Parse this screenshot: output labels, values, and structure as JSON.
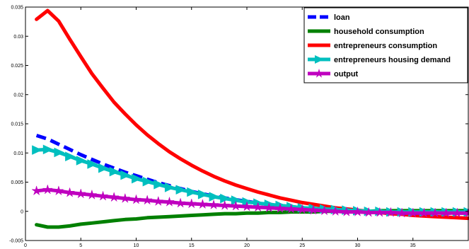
{
  "chart_data": {
    "type": "line",
    "title": "",
    "xlabel": "",
    "ylabel": "",
    "xlim": [
      0,
      40
    ],
    "ylim": [
      -0.005,
      0.035
    ],
    "xticks": [
      0,
      5,
      10,
      15,
      20,
      25,
      30,
      35
    ],
    "yticks": [
      -0.005,
      0,
      0.005,
      0.01,
      0.015,
      0.02,
      0.025,
      0.03,
      0.035
    ],
    "xtick_labels": [
      "0",
      "5",
      "10",
      "15",
      "20",
      "25",
      "30",
      "35"
    ],
    "ytick_labels": [
      "-0.005",
      "0",
      "0.005",
      "0.01",
      "0.015",
      "0.02",
      "0.025",
      "0.03",
      "0.035"
    ],
    "grid": false,
    "legend_position": "top-right",
    "x": [
      1,
      2,
      3,
      4,
      5,
      6,
      7,
      8,
      9,
      10,
      11,
      12,
      13,
      14,
      15,
      16,
      17,
      18,
      19,
      20,
      21,
      22,
      23,
      24,
      25,
      26,
      27,
      28,
      29,
      30,
      31,
      32,
      33,
      34,
      35,
      36,
      37,
      38,
      39,
      40
    ],
    "series": [
      {
        "name": "loan",
        "color": "#0000ff",
        "style": "dashed",
        "values": [
          0.013,
          0.0124,
          0.0115,
          0.0106,
          0.0097,
          0.0089,
          0.0081,
          0.0074,
          0.0067,
          0.0061,
          0.0055,
          0.0049,
          0.0044,
          0.0039,
          0.0034,
          0.003,
          0.0026,
          0.0023,
          0.002,
          0.0017,
          0.0014,
          0.0012,
          0.001,
          0.0008,
          0.0006,
          0.0004,
          0.0003,
          0.0002,
          0.0001,
          0.0,
          -0.0001,
          -0.0002,
          -0.0002,
          -0.0003,
          -0.0003,
          -0.0003,
          -0.0003,
          -0.0003,
          -0.0003,
          -0.0003
        ]
      },
      {
        "name": "household consumption",
        "color": "#008000",
        "style": "solid",
        "values": [
          -0.0023,
          -0.0027,
          -0.0027,
          -0.0025,
          -0.0022,
          -0.002,
          -0.0018,
          -0.0016,
          -0.0014,
          -0.0013,
          -0.0011,
          -0.001,
          -0.0009,
          -0.0008,
          -0.0007,
          -0.0006,
          -0.0005,
          -0.0004,
          -0.0004,
          -0.0003,
          -0.0003,
          -0.0002,
          -0.0002,
          -0.0001,
          -0.0001,
          -0.0001,
          0.0,
          0.0,
          0.0,
          0.0,
          0.0,
          0.0001,
          0.0001,
          0.0001,
          0.0001,
          0.0001,
          0.0001,
          0.0001,
          0.0001,
          0.0001
        ]
      },
      {
        "name": "entrepreneurs consumption",
        "color": "#ff0000",
        "style": "solid",
        "values": [
          0.0329,
          0.0344,
          0.0326,
          0.0295,
          0.0265,
          0.0236,
          0.0211,
          0.0187,
          0.0167,
          0.0148,
          0.0131,
          0.0116,
          0.0102,
          0.009,
          0.0079,
          0.0069,
          0.006,
          0.0052,
          0.0045,
          0.0039,
          0.0033,
          0.0028,
          0.0023,
          0.0019,
          0.0015,
          0.0012,
          0.0009,
          0.0006,
          0.0004,
          0.0002,
          0.0,
          -0.0002,
          -0.0004,
          -0.0005,
          -0.0007,
          -0.0008,
          -0.0009,
          -0.001,
          -0.0011,
          -0.0012
        ]
      },
      {
        "name": "entrepreneurs housing demand",
        "color": "#00bfbf",
        "style": "solid-arrow-markers",
        "values": [
          0.0105,
          0.0106,
          0.0101,
          0.0094,
          0.0087,
          0.0081,
          0.0074,
          0.0068,
          0.0062,
          0.0056,
          0.0051,
          0.0046,
          0.0041,
          0.0037,
          0.0033,
          0.0029,
          0.0025,
          0.0022,
          0.0019,
          0.0016,
          0.0014,
          0.0012,
          0.001,
          0.0008,
          0.0006,
          0.0005,
          0.0004,
          0.0003,
          0.0002,
          0.0001,
          0.0,
          0.0,
          -0.0001,
          -0.0001,
          -0.0001,
          -0.0001,
          -0.0001,
          -0.0001,
          -0.0001,
          -0.0001
        ]
      },
      {
        "name": "output",
        "color": "#bf00bf",
        "style": "solid-star-markers",
        "values": [
          0.0035,
          0.0037,
          0.0035,
          0.0032,
          0.003,
          0.0028,
          0.0026,
          0.0024,
          0.0022,
          0.002,
          0.0019,
          0.0017,
          0.0016,
          0.0014,
          0.0013,
          0.0012,
          0.0011,
          0.001,
          0.0009,
          0.0008,
          0.0007,
          0.0006,
          0.0005,
          0.0004,
          0.0003,
          0.0002,
          0.0001,
          0.0,
          -0.0001,
          -0.0001,
          -0.0002,
          -0.0002,
          -0.0002,
          -0.0003,
          -0.0003,
          -0.0003,
          -0.0003,
          -0.0003,
          -0.0003,
          -0.0003
        ]
      }
    ]
  }
}
